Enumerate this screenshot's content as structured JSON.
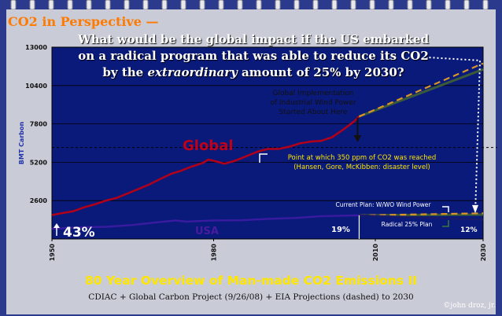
{
  "header": {
    "title": "CO2 in Perspective —",
    "question_line1": "What would be the global impact if the US embarked",
    "question_line2": "on a radical program that was able to reduce its CO2",
    "question_line3_pre": "by the ",
    "question_line3_em": "extraordinary",
    "question_line3_post": " amount of 25% by 2030?"
  },
  "footer": {
    "title": "80 Year Overview of Man-made CO2 Emissions II",
    "subtitle": "CDIAC + Global Carbon Project (9/26/08) + EIA Projections (dashed) to 2030",
    "copyright": "©john droz, jr."
  },
  "colors": {
    "background": "#2b3a8c",
    "panel": "#c9cbd6",
    "plot_bg": "#0a1a7a",
    "global_line": "#b0001a",
    "usa_line": "#3a1aa0",
    "wind_line": "#3a5a3a",
    "projection_dash": "#d9952a",
    "label_global": "#c00018",
    "label_usa": "#4a1aa0",
    "annotation_text": "#ffe600"
  },
  "chart_data": {
    "type": "line",
    "ylabel": "BMT Carbon",
    "xlim": [
      1950,
      2030
    ],
    "ylim": [
      0,
      13000
    ],
    "y_ticks": [
      2600,
      5200,
      7800,
      10400,
      13000
    ],
    "x_ticks": [
      1950,
      1980,
      2010,
      2030
    ],
    "reference_line_350ppm": 6200,
    "series": [
      {
        "name": "Global",
        "x": [
          1950,
          1952,
          1954,
          1956,
          1958,
          1960,
          1962,
          1964,
          1966,
          1968,
          1970,
          1972,
          1974,
          1976,
          1978,
          1979,
          1980,
          1982,
          1984,
          1986,
          1988,
          1990,
          1992,
          1994,
          1996,
          1998,
          2000,
          2002,
          2004,
          2006,
          2007
        ],
        "values": [
          1620,
          1760,
          1880,
          2150,
          2350,
          2600,
          2780,
          3080,
          3380,
          3680,
          4050,
          4400,
          4630,
          4920,
          5150,
          5380,
          5300,
          5100,
          5300,
          5600,
          5900,
          6100,
          6100,
          6250,
          6480,
          6600,
          6650,
          6900,
          7400,
          7950,
          8300
        ]
      },
      {
        "name": "USA",
        "x": [
          1950,
          1955,
          1960,
          1965,
          1970,
          1973,
          1975,
          1980,
          1985,
          1990,
          1995,
          2000,
          2005,
          2007
        ],
        "values": [
          690,
          790,
          820,
          950,
          1150,
          1250,
          1180,
          1260,
          1270,
          1360,
          1420,
          1540,
          1590,
          1600
        ]
      },
      {
        "name": "Global Implementation of Industrial Wind Power",
        "x": [
          2007,
          2030
        ],
        "values": [
          8300,
          11500
        ]
      },
      {
        "name": "EIA Projection Global (dashed)",
        "x": [
          2007,
          2030
        ],
        "values": [
          8300,
          11900
        ]
      },
      {
        "name": "Current Plan: W/WO Wind Power",
        "x": [
          2007,
          2030
        ],
        "values": [
          1600,
          1650
        ]
      },
      {
        "name": "EIA Projection USA (dashed)",
        "x": [
          2007,
          2030
        ],
        "values": [
          1600,
          1740
        ]
      },
      {
        "name": "Radical 25% Plan",
        "x": [
          2007,
          2030
        ],
        "values": [
          1600,
          1310
        ]
      }
    ],
    "annotations": {
      "global_label": "Global",
      "usa_label": "USA",
      "wind_note_1": "Global Implementation",
      "wind_note_2": "of Industrial Wind Power",
      "wind_note_3": "Started About Here",
      "ppm_note_1": "Point at which 350 ppm of CO2 was reached",
      "ppm_note_2": "(Hansen, Gore, McKibben: disaster level)",
      "current_plan": "Current Plan: W/WO Wind Power",
      "radical_plan": "Radical 25% Plan",
      "pct_43": "43%",
      "pct_19": "19%",
      "pct_12": "12%"
    }
  }
}
